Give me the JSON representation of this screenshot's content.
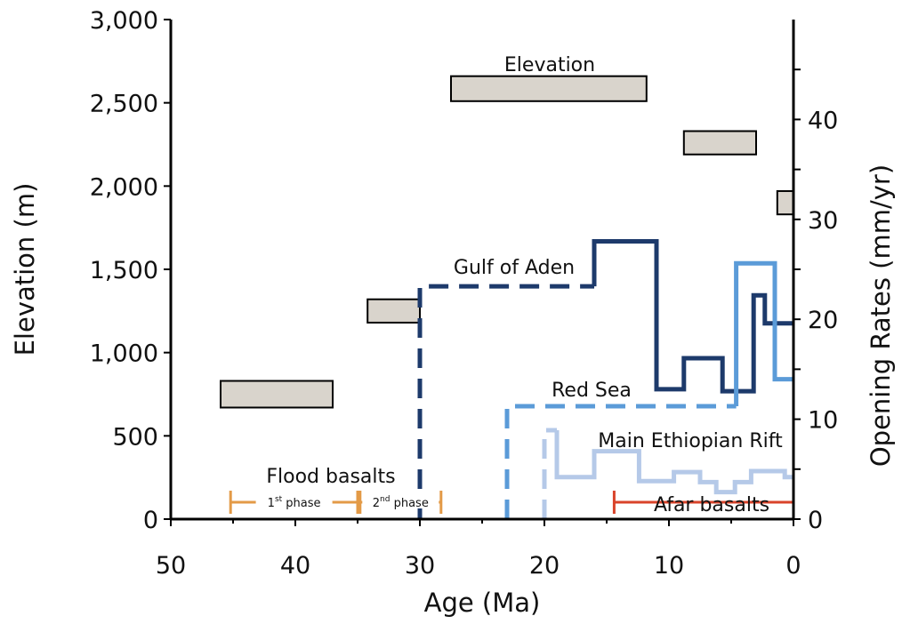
{
  "chart_data": {
    "type": "line",
    "xlabel": "Age (Ma)",
    "ylabel": "Elevation (m)",
    "y2label": "Opening Rates (mm/yr)",
    "xlim": [
      50,
      0
    ],
    "ylim": [
      0,
      3000
    ],
    "y2lim": [
      0,
      50
    ],
    "x_ticks": [
      50,
      40,
      30,
      20,
      10,
      0
    ],
    "y_ticks": [
      0,
      500,
      1000,
      1500,
      2000,
      2500,
      3000
    ],
    "y_tick_labels": [
      "0",
      "500",
      "1,000",
      "1,500",
      "2,000",
      "2,500",
      "3,000"
    ],
    "y2_ticks": [
      0,
      10,
      20,
      30,
      40
    ],
    "grid": false,
    "elevation_label": "Elevation",
    "elevation_boxes": [
      {
        "age_from": 46,
        "age_to": 37,
        "elev_low": 670,
        "elev_high": 830
      },
      {
        "age_from": 34.2,
        "age_to": 30,
        "elev_low": 1180,
        "elev_high": 1320
      },
      {
        "age_from": 27.5,
        "age_to": 11.8,
        "elev_low": 2510,
        "elev_high": 2660
      },
      {
        "age_from": 8.8,
        "age_to": 3,
        "elev_low": 2190,
        "elev_high": 2330
      },
      {
        "age_from": 1.3,
        "age_to": 0,
        "elev_low": 1830,
        "elev_high": 1970
      }
    ],
    "series": [
      {
        "name": "Gulf of Aden",
        "color": "#1d3a6b",
        "segments": [
          {
            "style": "dashed",
            "points": [
              [
                30,
                0
              ],
              [
                30,
                23.3
              ],
              [
                16,
                23.3
              ]
            ]
          },
          {
            "style": "solid",
            "points": [
              [
                16,
                23.3
              ],
              [
                16,
                27.8
              ],
              [
                11,
                27.8
              ],
              [
                11,
                13
              ],
              [
                8.8,
                13
              ],
              [
                8.8,
                16.1
              ],
              [
                5.7,
                16.1
              ],
              [
                5.7,
                12.8
              ],
              [
                3.2,
                12.8
              ],
              [
                3.2,
                22.4
              ],
              [
                2.3,
                22.4
              ],
              [
                2.3,
                19.6
              ],
              [
                0,
                19.6
              ]
            ]
          }
        ]
      },
      {
        "name": "Red Sea",
        "color": "#5b9bd8",
        "segments": [
          {
            "style": "dashed",
            "points": [
              [
                23,
                0
              ],
              [
                23,
                11.3
              ],
              [
                4.6,
                11.3
              ]
            ]
          },
          {
            "style": "solid",
            "points": [
              [
                4.6,
                11.3
              ],
              [
                4.6,
                25.6
              ],
              [
                1.5,
                25.6
              ],
              [
                1.5,
                14
              ],
              [
                0,
                14
              ]
            ]
          }
        ]
      },
      {
        "name": "Main Ethiopian Rift",
        "color": "#b5c9e8",
        "segments": [
          {
            "style": "dashed",
            "points": [
              [
                20,
                0
              ],
              [
                20,
                8.9
              ],
              [
                19,
                8.9
              ]
            ]
          },
          {
            "style": "solid",
            "points": [
              [
                19,
                8.9
              ],
              [
                19,
                4.2
              ],
              [
                16,
                4.2
              ],
              [
                16,
                6.8
              ],
              [
                12.4,
                6.8
              ],
              [
                12.4,
                3.8
              ],
              [
                9.6,
                3.8
              ],
              [
                9.6,
                4.7
              ],
              [
                7.5,
                4.7
              ],
              [
                7.5,
                3.7
              ],
              [
                6.2,
                3.7
              ],
              [
                6.2,
                2.7
              ],
              [
                4.7,
                2.7
              ],
              [
                4.7,
                3.7
              ],
              [
                3.4,
                3.7
              ],
              [
                3.4,
                4.8
              ],
              [
                0.7,
                4.8
              ],
              [
                0.7,
                4.2
              ],
              [
                0,
                4.2
              ]
            ]
          }
        ]
      }
    ],
    "annotations": {
      "flood_basalts": "Flood basalts",
      "afar_basalts": "Afar basalts"
    },
    "phases": [
      {
        "sup": "st",
        "num": "1",
        "word": "phase",
        "age_from": 45.2,
        "age_to": 35,
        "color": "#e39a47"
      },
      {
        "sup": "nd",
        "num": "2",
        "word": "phase",
        "age_from": 34.8,
        "age_to": 28.3,
        "color": "#e39a47"
      }
    ],
    "afar_range": {
      "age_from": 14.4,
      "age_to": 0,
      "color": "#d9432a"
    }
  }
}
